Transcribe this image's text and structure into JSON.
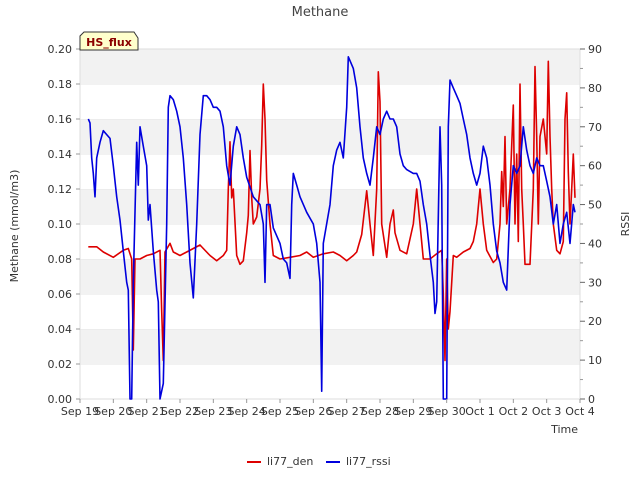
{
  "chart_data": {
    "type": "line",
    "title": "Methane",
    "badge": "HS_flux",
    "xlabel": "Time",
    "ylabel_left": "Methane (mmol/m3)",
    "ylabel_right": "RSSI",
    "ylim_left": [
      0,
      0.2
    ],
    "ylim_right": [
      0,
      90
    ],
    "xlim": [
      0,
      15
    ],
    "left_ticks": [
      "0.00",
      "0.02",
      "0.04",
      "0.06",
      "0.08",
      "0.10",
      "0.12",
      "0.14",
      "0.16",
      "0.18",
      "0.20"
    ],
    "right_ticks": [
      "0",
      "10",
      "20",
      "30",
      "40",
      "50",
      "60",
      "70",
      "80",
      "90"
    ],
    "x_ticks": [
      "Sep 19",
      "Sep 20",
      "Sep 21",
      "Sep 22",
      "Sep 23",
      "Sep 24",
      "Sep 25",
      "Sep 26",
      "Sep 27",
      "Sep 28",
      "Sep 29",
      "Sep 30",
      "Oct 1",
      "Oct 2",
      "Oct 3",
      "Oct 4"
    ],
    "grid": "horizontal-bands",
    "legend_position": "bottom",
    "colors": {
      "li77_den": "#dd0000",
      "li77_rssi": "#0000dd",
      "band": "#f2f2f2",
      "badge_bg": "#ffffcc"
    },
    "series": [
      {
        "name": "li77_den",
        "axis": "left",
        "points": [
          [
            0.25,
            0.087
          ],
          [
            0.5,
            0.087
          ],
          [
            0.7,
            0.084
          ],
          [
            1.0,
            0.081
          ],
          [
            1.3,
            0.085
          ],
          [
            1.45,
            0.086
          ],
          [
            1.55,
            0.08
          ],
          [
            1.6,
            0.028
          ],
          [
            1.65,
            0.08
          ],
          [
            1.8,
            0.08
          ],
          [
            2.0,
            0.082
          ],
          [
            2.2,
            0.083
          ],
          [
            2.4,
            0.085
          ],
          [
            2.45,
            0.05
          ],
          [
            2.5,
            0.022
          ],
          [
            2.55,
            0.084
          ],
          [
            2.7,
            0.089
          ],
          [
            2.8,
            0.084
          ],
          [
            3.0,
            0.082
          ],
          [
            3.2,
            0.084
          ],
          [
            3.4,
            0.086
          ],
          [
            3.6,
            0.088
          ],
          [
            3.7,
            0.086
          ],
          [
            3.9,
            0.082
          ],
          [
            4.1,
            0.079
          ],
          [
            4.3,
            0.082
          ],
          [
            4.4,
            0.085
          ],
          [
            4.45,
            0.12
          ],
          [
            4.5,
            0.147
          ],
          [
            4.55,
            0.115
          ],
          [
            4.6,
            0.12
          ],
          [
            4.7,
            0.082
          ],
          [
            4.8,
            0.077
          ],
          [
            4.9,
            0.079
          ],
          [
            5.0,
            0.095
          ],
          [
            5.05,
            0.105
          ],
          [
            5.1,
            0.142
          ],
          [
            5.15,
            0.115
          ],
          [
            5.2,
            0.1
          ],
          [
            5.3,
            0.104
          ],
          [
            5.4,
            0.12
          ],
          [
            5.45,
            0.145
          ],
          [
            5.5,
            0.18
          ],
          [
            5.55,
            0.16
          ],
          [
            5.6,
            0.125
          ],
          [
            5.7,
            0.1
          ],
          [
            5.8,
            0.082
          ],
          [
            6.0,
            0.08
          ],
          [
            6.3,
            0.081
          ],
          [
            6.6,
            0.082
          ],
          [
            6.8,
            0.084
          ],
          [
            7.0,
            0.081
          ],
          [
            7.3,
            0.083
          ],
          [
            7.6,
            0.084
          ],
          [
            7.8,
            0.082
          ],
          [
            8.0,
            0.079
          ],
          [
            8.2,
            0.082
          ],
          [
            8.3,
            0.084
          ],
          [
            8.45,
            0.094
          ],
          [
            8.6,
            0.119
          ],
          [
            8.7,
            0.1
          ],
          [
            8.8,
            0.082
          ],
          [
            8.9,
            0.12
          ],
          [
            8.95,
            0.187
          ],
          [
            9.0,
            0.17
          ],
          [
            9.05,
            0.1
          ],
          [
            9.2,
            0.081
          ],
          [
            9.3,
            0.1
          ],
          [
            9.4,
            0.108
          ],
          [
            9.45,
            0.095
          ],
          [
            9.6,
            0.085
          ],
          [
            9.8,
            0.083
          ],
          [
            10.0,
            0.1
          ],
          [
            10.1,
            0.12
          ],
          [
            10.2,
            0.1
          ],
          [
            10.3,
            0.08
          ],
          [
            10.5,
            0.08
          ],
          [
            10.7,
            0.083
          ],
          [
            10.85,
            0.085
          ],
          [
            10.9,
            0.06
          ],
          [
            10.95,
            0.022
          ],
          [
            11.0,
            0.08
          ],
          [
            11.05,
            0.04
          ],
          [
            11.1,
            0.05
          ],
          [
            11.2,
            0.082
          ],
          [
            11.3,
            0.081
          ],
          [
            11.5,
            0.084
          ],
          [
            11.7,
            0.086
          ],
          [
            11.8,
            0.09
          ],
          [
            11.9,
            0.1
          ],
          [
            12.0,
            0.12
          ],
          [
            12.1,
            0.1
          ],
          [
            12.2,
            0.085
          ],
          [
            12.4,
            0.078
          ],
          [
            12.5,
            0.08
          ],
          [
            12.6,
            0.1
          ],
          [
            12.65,
            0.13
          ],
          [
            12.7,
            0.11
          ],
          [
            12.75,
            0.15
          ],
          [
            12.8,
            0.1
          ],
          [
            12.9,
            0.12
          ],
          [
            13.0,
            0.168
          ],
          [
            13.05,
            0.1
          ],
          [
            13.1,
            0.14
          ],
          [
            13.15,
            0.09
          ],
          [
            13.2,
            0.18
          ],
          [
            13.25,
            0.12
          ],
          [
            13.3,
            0.1
          ],
          [
            13.35,
            0.077
          ],
          [
            13.5,
            0.077
          ],
          [
            13.6,
            0.12
          ],
          [
            13.65,
            0.19
          ],
          [
            13.7,
            0.15
          ],
          [
            13.75,
            0.1
          ],
          [
            13.8,
            0.15
          ],
          [
            13.9,
            0.16
          ],
          [
            14.0,
            0.14
          ],
          [
            14.05,
            0.193
          ],
          [
            14.1,
            0.15
          ],
          [
            14.15,
            0.12
          ],
          [
            14.2,
            0.1
          ],
          [
            14.3,
            0.085
          ],
          [
            14.4,
            0.083
          ],
          [
            14.5,
            0.09
          ],
          [
            14.55,
            0.16
          ],
          [
            14.6,
            0.175
          ],
          [
            14.65,
            0.13
          ],
          [
            14.7,
            0.1
          ],
          [
            14.75,
            0.12
          ],
          [
            14.8,
            0.14
          ],
          [
            14.85,
            0.115
          ]
        ]
      },
      {
        "name": "li77_rssi",
        "axis": "right",
        "points": [
          [
            0.25,
            72
          ],
          [
            0.3,
            71
          ],
          [
            0.35,
            62
          ],
          [
            0.4,
            58
          ],
          [
            0.45,
            52
          ],
          [
            0.5,
            62
          ],
          [
            0.6,
            66
          ],
          [
            0.7,
            69
          ],
          [
            0.8,
            68
          ],
          [
            0.9,
            67
          ],
          [
            1.0,
            60
          ],
          [
            1.1,
            52
          ],
          [
            1.2,
            46
          ],
          [
            1.3,
            38
          ],
          [
            1.4,
            30
          ],
          [
            1.45,
            28
          ],
          [
            1.5,
            0
          ],
          [
            1.55,
            0
          ],
          [
            1.6,
            30
          ],
          [
            1.7,
            66
          ],
          [
            1.75,
            55
          ],
          [
            1.8,
            70
          ],
          [
            1.9,
            65
          ],
          [
            2.0,
            60
          ],
          [
            2.05,
            46
          ],
          [
            2.1,
            50
          ],
          [
            2.2,
            38
          ],
          [
            2.3,
            28
          ],
          [
            2.35,
            25
          ],
          [
            2.4,
            0
          ],
          [
            2.5,
            4
          ],
          [
            2.6,
            45
          ],
          [
            2.65,
            75
          ],
          [
            2.7,
            78
          ],
          [
            2.8,
            77
          ],
          [
            2.9,
            74
          ],
          [
            3.0,
            70
          ],
          [
            3.1,
            62
          ],
          [
            3.2,
            50
          ],
          [
            3.3,
            35
          ],
          [
            3.4,
            26
          ],
          [
            3.5,
            45
          ],
          [
            3.6,
            68
          ],
          [
            3.7,
            78
          ],
          [
            3.8,
            78
          ],
          [
            3.9,
            77
          ],
          [
            4.0,
            75
          ],
          [
            4.1,
            75
          ],
          [
            4.2,
            74
          ],
          [
            4.3,
            70
          ],
          [
            4.4,
            60
          ],
          [
            4.5,
            55
          ],
          [
            4.6,
            65
          ],
          [
            4.7,
            70
          ],
          [
            4.8,
            68
          ],
          [
            4.9,
            62
          ],
          [
            5.0,
            57
          ],
          [
            5.2,
            52
          ],
          [
            5.4,
            50
          ],
          [
            5.5,
            45
          ],
          [
            5.55,
            30
          ],
          [
            5.6,
            50
          ],
          [
            5.7,
            50
          ],
          [
            5.8,
            44
          ],
          [
            6.0,
            40
          ],
          [
            6.1,
            36
          ],
          [
            6.2,
            35
          ],
          [
            6.3,
            31
          ],
          [
            6.35,
            50
          ],
          [
            6.4,
            58
          ],
          [
            6.5,
            55
          ],
          [
            6.6,
            52
          ],
          [
            6.8,
            48
          ],
          [
            7.0,
            45
          ],
          [
            7.1,
            40
          ],
          [
            7.2,
            30
          ],
          [
            7.25,
            2
          ],
          [
            7.3,
            40
          ],
          [
            7.5,
            50
          ],
          [
            7.6,
            60
          ],
          [
            7.7,
            64
          ],
          [
            7.8,
            66
          ],
          [
            7.9,
            62
          ],
          [
            8.0,
            75
          ],
          [
            8.05,
            88
          ],
          [
            8.1,
            87
          ],
          [
            8.2,
            85
          ],
          [
            8.3,
            80
          ],
          [
            8.4,
            70
          ],
          [
            8.5,
            62
          ],
          [
            8.6,
            58
          ],
          [
            8.7,
            55
          ],
          [
            8.8,
            62
          ],
          [
            8.9,
            70
          ],
          [
            9.0,
            68
          ],
          [
            9.1,
            72
          ],
          [
            9.2,
            74
          ],
          [
            9.3,
            72
          ],
          [
            9.4,
            72
          ],
          [
            9.5,
            70
          ],
          [
            9.6,
            63
          ],
          [
            9.7,
            60
          ],
          [
            9.8,
            59
          ],
          [
            10.0,
            58
          ],
          [
            10.1,
            58
          ],
          [
            10.2,
            56
          ],
          [
            10.3,
            50
          ],
          [
            10.4,
            45
          ],
          [
            10.5,
            37
          ],
          [
            10.6,
            30
          ],
          [
            10.65,
            22
          ],
          [
            10.7,
            25
          ],
          [
            10.8,
            70
          ],
          [
            10.85,
            55
          ],
          [
            10.9,
            0
          ],
          [
            11.0,
            0
          ],
          [
            11.05,
            70
          ],
          [
            11.1,
            82
          ],
          [
            11.2,
            80
          ],
          [
            11.3,
            78
          ],
          [
            11.4,
            76
          ],
          [
            11.5,
            72
          ],
          [
            11.6,
            68
          ],
          [
            11.7,
            62
          ],
          [
            11.8,
            58
          ],
          [
            11.9,
            55
          ],
          [
            12.0,
            58
          ],
          [
            12.1,
            65
          ],
          [
            12.2,
            62
          ],
          [
            12.3,
            55
          ],
          [
            12.4,
            45
          ],
          [
            12.5,
            38
          ],
          [
            12.6,
            35
          ],
          [
            12.7,
            30
          ],
          [
            12.8,
            28
          ],
          [
            12.9,
            50
          ],
          [
            13.0,
            60
          ],
          [
            13.1,
            58
          ],
          [
            13.2,
            60
          ],
          [
            13.3,
            70
          ],
          [
            13.4,
            64
          ],
          [
            13.5,
            60
          ],
          [
            13.6,
            58
          ],
          [
            13.7,
            62
          ],
          [
            13.8,
            60
          ],
          [
            13.9,
            60
          ],
          [
            14.0,
            56
          ],
          [
            14.1,
            52
          ],
          [
            14.2,
            45
          ],
          [
            14.3,
            50
          ],
          [
            14.4,
            40
          ],
          [
            14.5,
            45
          ],
          [
            14.6,
            48
          ],
          [
            14.7,
            40
          ],
          [
            14.8,
            50
          ],
          [
            14.85,
            48
          ]
        ]
      }
    ]
  }
}
